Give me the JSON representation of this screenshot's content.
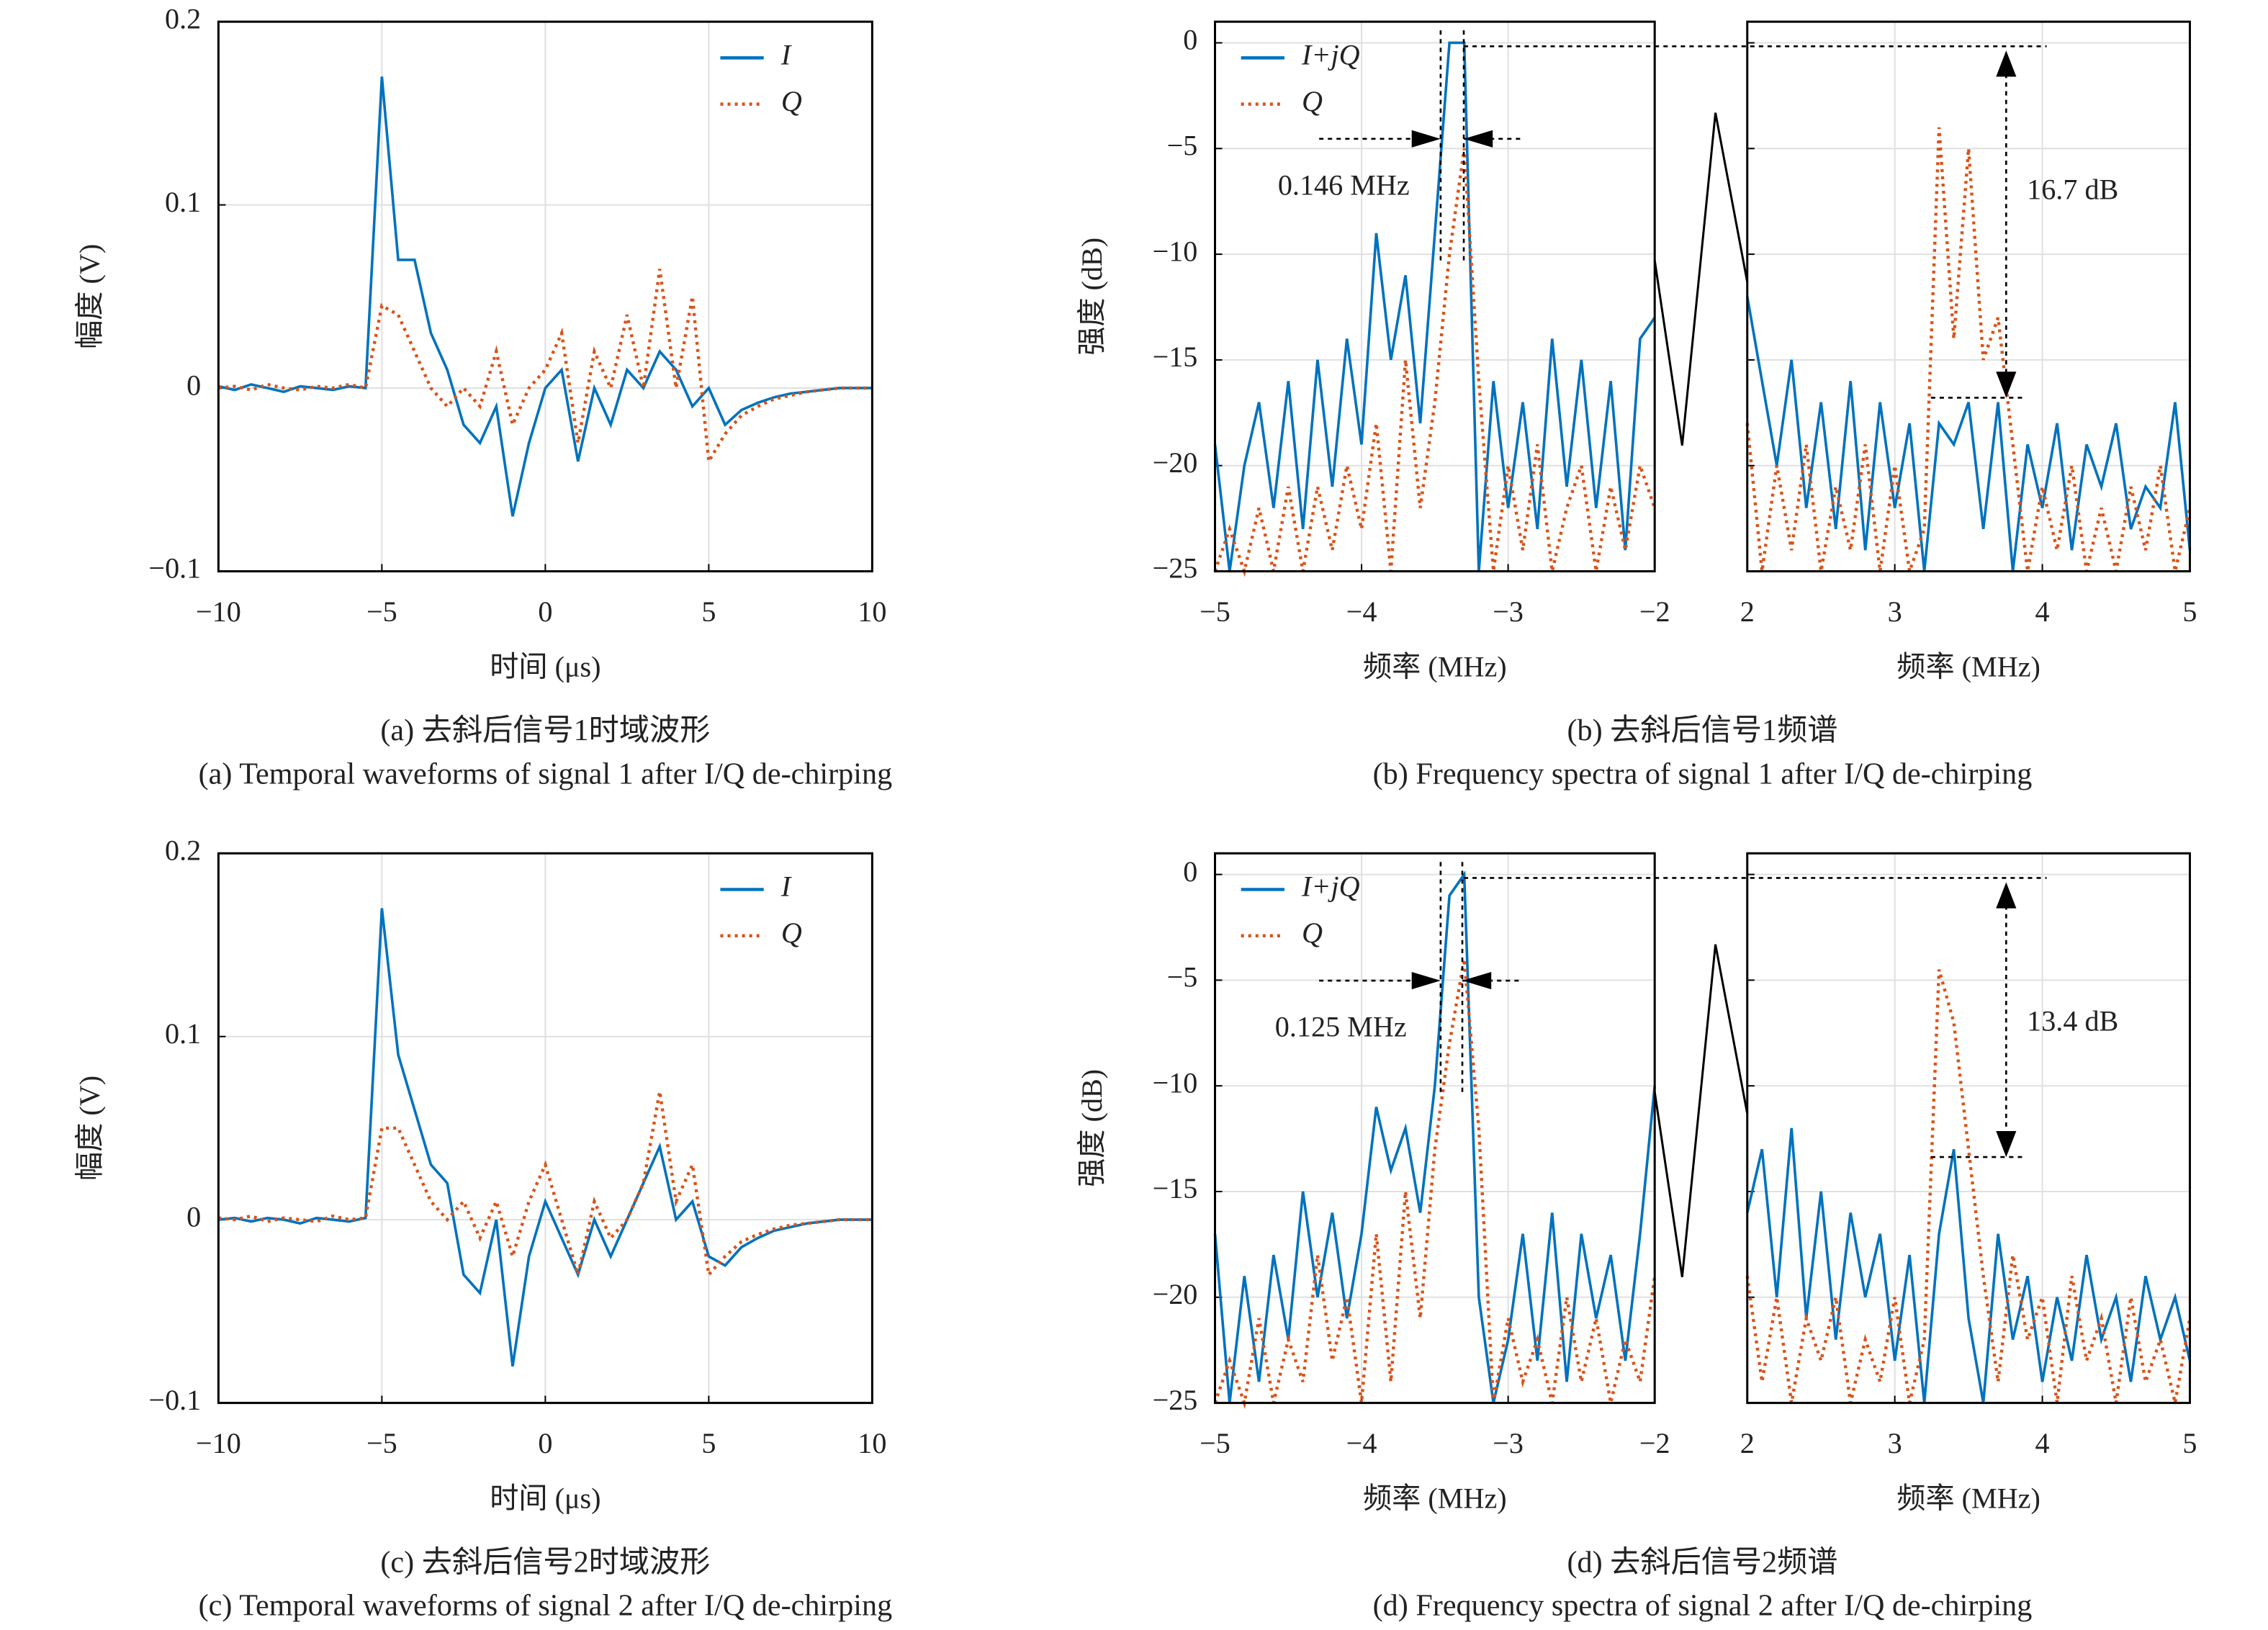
{
  "chart_data": [
    {
      "type": "line",
      "xlabel": "时间 (μs)",
      "ylabel": "幅度 (V)",
      "caption_cn": "(a) 去斜后信号1时域波形",
      "caption_en": "(a) Temporal waveforms of signal 1 after I/Q de-chirping",
      "legend": "upper right",
      "grid": true,
      "xlim": [
        -10,
        10
      ],
      "ylim": [
        -0.1,
        0.2
      ],
      "xticks": [
        {
          "value": -10,
          "label": "−10"
        },
        {
          "value": -5,
          "label": "−5"
        },
        0,
        5,
        10
      ],
      "yticks": [
        {
          "value": -0.1,
          "label": "−0.1"
        },
        0,
        0.1,
        0.2
      ],
      "x": [
        -10,
        -9.5,
        -9,
        -8.5,
        -8,
        -7.5,
        -7,
        -6.5,
        -6,
        -5.5,
        -5,
        -4.5,
        -4,
        -3.5,
        -3,
        -2.5,
        -2,
        -1.5,
        -1,
        -0.5,
        0,
        0.5,
        1,
        1.5,
        2,
        2.5,
        3,
        3.5,
        4,
        4.5,
        5,
        5.5,
        6,
        6.5,
        7,
        7.5,
        8,
        8.5,
        9,
        9.5,
        10
      ],
      "series": [
        {
          "name": "I",
          "color": "#0072bd",
          "style": "solid",
          "values": [
            0.001,
            -0.001,
            0.002,
            0,
            -0.002,
            0.001,
            0,
            -0.001,
            0.001,
            0,
            0.17,
            0.07,
            0.07,
            0.03,
            0.01,
            -0.02,
            -0.03,
            -0.01,
            -0.07,
            -0.03,
            0,
            0.01,
            -0.04,
            0,
            -0.02,
            0.01,
            0,
            0.02,
            0.01,
            -0.01,
            0,
            -0.02,
            -0.012,
            -0.008,
            -0.005,
            -0.003,
            -0.002,
            -0.001,
            0,
            0,
            0
          ]
        },
        {
          "name": "Q",
          "color": "#d95319",
          "style": "dotted",
          "values": [
            0,
            0.001,
            -0.001,
            0.002,
            0,
            -0.001,
            0.001,
            0,
            0.002,
            0,
            0.045,
            0.04,
            0.02,
            0,
            -0.01,
            0,
            -0.01,
            0.02,
            -0.02,
            0,
            0.01,
            0.03,
            -0.03,
            0.02,
            0,
            0.04,
            0,
            0.065,
            0,
            0.05,
            -0.04,
            -0.025,
            -0.015,
            -0.01,
            -0.006,
            -0.004,
            -0.002,
            -0.001,
            0,
            0,
            0
          ]
        }
      ]
    },
    {
      "type": "broken_line",
      "ylabel": "强度 (dB)",
      "caption_cn": "(b) 去斜后信号1频谱",
      "caption_en": "(b) Frequency spectra of signal 1 after I/Q de-chirping",
      "legend": "upper left",
      "grid": true,
      "ylim": [
        -25,
        1
      ],
      "yticks": [
        {
          "value": -25,
          "label": "−25"
        },
        {
          "value": -20,
          "label": "−20"
        },
        {
          "value": -15,
          "label": "−15"
        },
        {
          "value": -10,
          "label": "−10"
        },
        {
          "value": -5,
          "label": "−5"
        },
        0
      ],
      "series": [
        {
          "name": "I+jQ",
          "color": "#0072bd",
          "style": "solid"
        },
        {
          "name": "Q",
          "color": "#d95319",
          "style": "dotted"
        }
      ],
      "width_label": "0.146 MHz",
      "drop_label": "16.7 dB",
      "panels": [
        {
          "xlabel": "频率 (MHz)",
          "xlim": [
            -5,
            -2
          ],
          "xticks": [
            {
              "value": -5,
              "label": "−5"
            },
            {
              "value": -4,
              "label": "−4"
            },
            {
              "value": -3,
              "label": "−3"
            },
            {
              "value": -2,
              "label": "−2"
            }
          ],
          "x": [
            -5,
            -4.9,
            -4.8,
            -4.7,
            -4.6,
            -4.5,
            -4.4,
            -4.3,
            -4.2,
            -4.1,
            -4,
            -3.9,
            -3.8,
            -3.7,
            -3.6,
            -3.5,
            -3.4,
            -3.3,
            -3.2,
            -3.1,
            -3,
            -2.9,
            -2.8,
            -2.7,
            -2.6,
            -2.5,
            -2.4,
            -2.3,
            -2.2,
            -2.1,
            -2
          ],
          "series_values": [
            [
              -19,
              -25,
              -20,
              -17,
              -22,
              -16,
              -23,
              -15,
              -21,
              -14,
              -19,
              -9,
              -15,
              -11,
              -18,
              -9,
              0,
              0,
              -25,
              -16,
              -22,
              -17,
              -23,
              -14,
              -21,
              -15,
              -22,
              -16,
              -24,
              -14,
              -13
            ],
            [
              -25,
              -23,
              -25,
              -22,
              -25,
              -21,
              -25,
              -21,
              -24,
              -20,
              -23,
              -18,
              -25,
              -15,
              -22,
              -17,
              -10,
              -5,
              -16,
              -25,
              -20,
              -24,
              -19,
              -25,
              -22,
              -20,
              -25,
              -21,
              -24,
              -20,
              -22
            ]
          ]
        },
        {
          "xlabel": "频率 (MHz)",
          "xlim": [
            2,
            5
          ],
          "xticks": [
            2,
            3,
            4,
            5
          ],
          "x": [
            2,
            2.1,
            2.2,
            2.3,
            2.4,
            2.5,
            2.6,
            2.7,
            2.8,
            2.9,
            3,
            3.1,
            3.2,
            3.3,
            3.4,
            3.5,
            3.6,
            3.7,
            3.8,
            3.9,
            4,
            4.1,
            4.2,
            4.3,
            4.4,
            4.5,
            4.6,
            4.7,
            4.8,
            4.9,
            5
          ],
          "series_values": [
            [
              -12,
              -16,
              -20,
              -15,
              -22,
              -17,
              -23,
              -16,
              -24,
              -17,
              -22,
              -18,
              -25,
              -18,
              -19,
              -17,
              -23,
              -17,
              -25,
              -19,
              -22,
              -18,
              -24,
              -19,
              -21,
              -18,
              -23,
              -21,
              -22,
              -17,
              -24
            ],
            [
              -18,
              -25,
              -20,
              -24,
              -19,
              -25,
              -21,
              -24,
              -19,
              -25,
              -20,
              -25,
              -23,
              -4,
              -14,
              -5,
              -15,
              -13,
              -19,
              -25,
              -21,
              -24,
              -20,
              -25,
              -22,
              -25,
              -21,
              -24,
              -20,
              -25,
              -22
            ]
          ]
        }
      ]
    },
    {
      "type": "line",
      "xlabel": "时间 (μs)",
      "ylabel": "幅度 (V)",
      "caption_cn": "(c) 去斜后信号2时域波形",
      "caption_en": "(c) Temporal waveforms of signal 2 after I/Q de-chirping",
      "legend": "upper right",
      "grid": true,
      "xlim": [
        -10,
        10
      ],
      "ylim": [
        -0.1,
        0.2
      ],
      "xticks": [
        {
          "value": -10,
          "label": "−10"
        },
        {
          "value": -5,
          "label": "−5"
        },
        0,
        5,
        10
      ],
      "yticks": [
        {
          "value": -0.1,
          "label": "−0.1"
        },
        0,
        0.1,
        0.2
      ],
      "x": [
        -10,
        -9.5,
        -9,
        -8.5,
        -8,
        -7.5,
        -7,
        -6.5,
        -6,
        -5.5,
        -5,
        -4.5,
        -4,
        -3.5,
        -3,
        -2.5,
        -2,
        -1.5,
        -1,
        -0.5,
        0,
        0.5,
        1,
        1.5,
        2,
        2.5,
        3,
        3.5,
        4,
        4.5,
        5,
        5.5,
        6,
        6.5,
        7,
        7.5,
        8,
        8.5,
        9,
        9.5,
        10
      ],
      "series": [
        {
          "name": "I",
          "color": "#0072bd",
          "style": "solid",
          "values": [
            0,
            0.001,
            -0.001,
            0.001,
            0,
            -0.002,
            0.001,
            0,
            -0.001,
            0.001,
            0.17,
            0.09,
            0.06,
            0.03,
            0.02,
            -0.03,
            -0.04,
            0,
            -0.08,
            -0.02,
            0.01,
            -0.01,
            -0.03,
            0,
            -0.02,
            0,
            0.02,
            0.04,
            0,
            0.01,
            -0.02,
            -0.025,
            -0.015,
            -0.01,
            -0.006,
            -0.004,
            -0.002,
            -0.001,
            0,
            0,
            0
          ]
        },
        {
          "name": "Q",
          "color": "#d95319",
          "style": "dotted",
          "values": [
            0.001,
            0,
            0.002,
            -0.001,
            0.001,
            0,
            -0.001,
            0.002,
            0,
            0.001,
            0.05,
            0.05,
            0.03,
            0.01,
            0,
            0.01,
            -0.01,
            0.01,
            -0.02,
            0.01,
            0.03,
            0,
            -0.03,
            0.01,
            -0.01,
            0,
            0.02,
            0.07,
            0.01,
            0.03,
            -0.03,
            -0.02,
            -0.012,
            -0.008,
            -0.005,
            -0.003,
            -0.002,
            -0.001,
            0,
            0,
            0
          ]
        }
      ]
    },
    {
      "type": "broken_line",
      "ylabel": "强度 (dB)",
      "caption_cn": "(d) 去斜后信号2频谱",
      "caption_en": "(d) Frequency spectra of signal 2 after I/Q de-chirping",
      "legend": "upper left",
      "grid": true,
      "ylim": [
        -25,
        1
      ],
      "yticks": [
        {
          "value": -25,
          "label": "−25"
        },
        {
          "value": -20,
          "label": "−20"
        },
        {
          "value": -15,
          "label": "−15"
        },
        {
          "value": -10,
          "label": "−10"
        },
        {
          "value": -5,
          "label": "−5"
        },
        0
      ],
      "series": [
        {
          "name": "I+jQ",
          "color": "#0072bd",
          "style": "solid"
        },
        {
          "name": "Q",
          "color": "#d95319",
          "style": "dotted"
        }
      ],
      "width_label": "0.125 MHz",
      "drop_label": "13.4 dB",
      "panels": [
        {
          "xlabel": "频率 (MHz)",
          "xlim": [
            -5,
            -2
          ],
          "xticks": [
            {
              "value": -5,
              "label": "−5"
            },
            {
              "value": -4,
              "label": "−4"
            },
            {
              "value": -3,
              "label": "−3"
            },
            {
              "value": -2,
              "label": "−2"
            }
          ],
          "x": [
            -5,
            -4.9,
            -4.8,
            -4.7,
            -4.6,
            -4.5,
            -4.4,
            -4.3,
            -4.2,
            -4.1,
            -4,
            -3.9,
            -3.8,
            -3.7,
            -3.6,
            -3.5,
            -3.4,
            -3.3,
            -3.2,
            -3.1,
            -3,
            -2.9,
            -2.8,
            -2.7,
            -2.6,
            -2.5,
            -2.4,
            -2.3,
            -2.2,
            -2.1,
            -2
          ],
          "series_values": [
            [
              -17,
              -25,
              -19,
              -24,
              -18,
              -22,
              -15,
              -20,
              -16,
              -21,
              -17,
              -11,
              -14,
              -12,
              -16,
              -10,
              -1,
              0,
              -20,
              -25,
              -22,
              -17,
              -23,
              -16,
              -24,
              -17,
              -21,
              -18,
              -23,
              -17,
              -10
            ],
            [
              -25,
              -23,
              -25,
              -21,
              -25,
              -22,
              -24,
              -18,
              -23,
              -20,
              -25,
              -17,
              -24,
              -15,
              -21,
              -13,
              -8,
              -4,
              -12,
              -25,
              -21,
              -24,
              -22,
              -25,
              -20,
              -24,
              -21,
              -25,
              -22,
              -24,
              -19
            ]
          ]
        },
        {
          "xlabel": "频率 (MHz)",
          "xlim": [
            2,
            5
          ],
          "xticks": [
            2,
            3,
            4,
            5
          ],
          "x": [
            2,
            2.1,
            2.2,
            2.3,
            2.4,
            2.5,
            2.6,
            2.7,
            2.8,
            2.9,
            3,
            3.1,
            3.2,
            3.3,
            3.4,
            3.5,
            3.6,
            3.7,
            3.8,
            3.9,
            4,
            4.1,
            4.2,
            4.3,
            4.4,
            4.5,
            4.6,
            4.7,
            4.8,
            4.9,
            5
          ],
          "series_values": [
            [
              -16,
              -13,
              -20,
              -12,
              -21,
              -15,
              -22,
              -16,
              -20,
              -17,
              -23,
              -18,
              -25,
              -17,
              -13,
              -21,
              -25,
              -17,
              -22,
              -19,
              -24,
              -20,
              -23,
              -18,
              -22,
              -20,
              -24,
              -19,
              -22,
              -20,
              -23
            ],
            [
              -19,
              -24,
              -20,
              -25,
              -21,
              -23,
              -20,
              -25,
              -22,
              -24,
              -20,
              -25,
              -22,
              -4.5,
              -7,
              -13,
              -19,
              -24,
              -18,
              -22,
              -20,
              -25,
              -19,
              -23,
              -21,
              -25,
              -20,
              -24,
              -22,
              -25,
              -21
            ]
          ]
        }
      ]
    }
  ]
}
